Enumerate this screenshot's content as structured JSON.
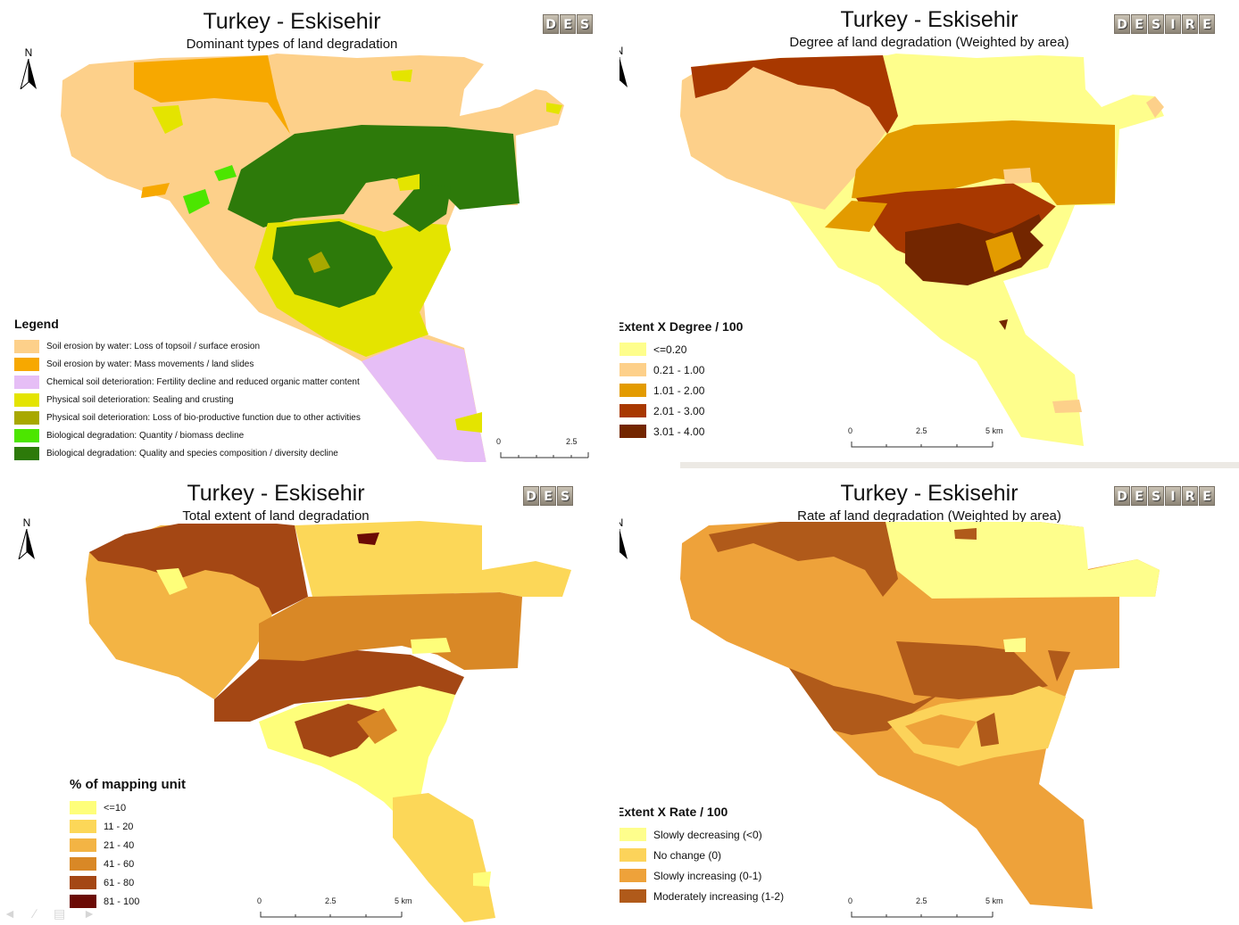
{
  "panels": [
    {
      "id": "dominant",
      "title": "Turkey - Eskisehir",
      "subtitle": "Dominant types of land degradation",
      "logo_letters": [
        "D",
        "E",
        "S"
      ],
      "north_label": "N",
      "legend": {
        "title": "Legend",
        "items": [
          {
            "label": "Soil erosion by water: Loss of topsoil / surface erosion",
            "color": "#fdd08a"
          },
          {
            "label": "Soil erosion by water: Mass movements / land slides",
            "color": "#f7a800"
          },
          {
            "label": "Chemical soil deterioration: Fertility decline and reduced organic matter content",
            "color": "#e6bef6"
          },
          {
            "label": "Physical soil deterioration: Sealing and crusting",
            "color": "#e4e400"
          },
          {
            "label": "Physical soil deterioration: Loss of bio-productive function due to other activities",
            "color": "#a8a800"
          },
          {
            "label": "Biological degradation: Quantity / biomass decline",
            "color": "#4ce600"
          },
          {
            "label": "Biological degradation: Quality and species composition / diversity decline",
            "color": "#2d7a0a"
          }
        ]
      },
      "scale_labels": [
        "0",
        "2.5"
      ]
    },
    {
      "id": "degree",
      "title": "Turkey - Eskisehir",
      "subtitle": "Degree af land degradation (Weighted by area)",
      "logo_letters": [
        "D",
        "E",
        "S",
        "I",
        "R",
        "E"
      ],
      "north_label": "N",
      "legend": {
        "title": "Extent X Degree / 100",
        "items": [
          {
            "label": "<=0.20",
            "color": "#fefe8c"
          },
          {
            "label": "0.21 - 1.00",
            "color": "#fdd08a"
          },
          {
            "label": "1.01 - 2.00",
            "color": "#e39b00"
          },
          {
            "label": "2.01 - 3.00",
            "color": "#a83800"
          },
          {
            "label": "3.01 - 4.00",
            "color": "#732600"
          }
        ]
      },
      "scale_labels": [
        "0",
        "2.5",
        "5 km"
      ]
    },
    {
      "id": "extent",
      "title": "Turkey - Eskisehir",
      "subtitle": "Total extent of land degradation",
      "logo_letters": [
        "D",
        "E",
        "S"
      ],
      "north_label": "N",
      "legend": {
        "title": "% of mapping unit",
        "items": [
          {
            "label": "<=10",
            "color": "#fefe7a"
          },
          {
            "label": "11 - 20",
            "color": "#fcd758"
          },
          {
            "label": "21 - 40",
            "color": "#f3b444"
          },
          {
            "label": "41 - 60",
            "color": "#d98826"
          },
          {
            "label": "61 - 80",
            "color": "#a44714"
          },
          {
            "label": "81 - 100",
            "color": "#6b0a05"
          }
        ]
      },
      "scale_labels": [
        "0",
        "2.5",
        "5 km"
      ]
    },
    {
      "id": "rate",
      "title": "Turkey - Eskisehir",
      "subtitle": "Rate af land degradation (Weighted by area)",
      "logo_letters": [
        "D",
        "E",
        "S",
        "I",
        "R",
        "E"
      ],
      "north_label": "N",
      "legend": {
        "title": "Extent X Rate / 100",
        "items": [
          {
            "label": "Slowly decreasing (<0)",
            "color": "#fefe8c"
          },
          {
            "label": "No change (0)",
            "color": "#fcd35a"
          },
          {
            "label": "Slowly increasing (0-1)",
            "color": "#eea23a"
          },
          {
            "label": "Moderately increasing (1-2)",
            "color": "#b05a1a"
          }
        ]
      },
      "scale_labels": [
        "0",
        "2.5",
        "5 km"
      ]
    }
  ]
}
